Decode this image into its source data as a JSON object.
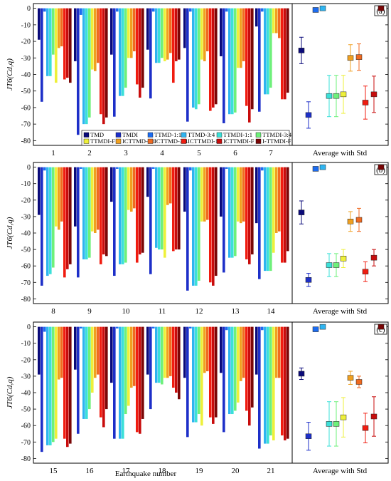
{
  "chart_data": {
    "type": "bar",
    "ylabel": "JT6(Cd,q)",
    "xlabel": "Earthquake number",
    "avg_label": "Average with Std",
    "ylim": [
      -82,
      2
    ],
    "yticks": [
      0,
      -10,
      -20,
      -30,
      -40,
      -50,
      -60,
      -70,
      -80
    ],
    "series_names": [
      "TMD",
      "TMDI",
      "TTMD-1:1",
      "TTMD-3:4",
      "TTMDI-1:1",
      "TTMDI-3:4",
      "TTMDI-F",
      "ICTTMD-1:1",
      "ICTTMD-3:4",
      "ICTTMDI-1:1",
      "ICTTMDI-F",
      "I-TTMDI-F"
    ],
    "colors": [
      "#0a0a7a",
      "#1d2fc8",
      "#1c6cf0",
      "#2fb4f0",
      "#3be0d8",
      "#6ef07a",
      "#eef03a",
      "#f0a020",
      "#f06a20",
      "#f01c10",
      "#c80c0c",
      "#7a0606"
    ],
    "panels": [
      {
        "label": "(a)",
        "categories": [
          "1",
          "2",
          "3",
          "4",
          "5",
          "6",
          "7"
        ],
        "values": [
          [
            -19,
            -56.5,
            -2,
            -41,
            -41,
            -28,
            -45,
            -24,
            -23,
            -43,
            -42,
            -45
          ],
          [
            -32,
            -76.5,
            -4,
            -70,
            -70,
            -66,
            -37,
            -38,
            -33,
            -64,
            -70,
            -66
          ],
          [
            -28,
            -65.5,
            -2,
            -53,
            -53,
            -48,
            -30,
            -30,
            -26,
            -46,
            -54,
            -48
          ],
          [
            -25,
            -54.5,
            -2,
            -33,
            -33,
            -30,
            -32,
            -31,
            -27,
            -45,
            -32,
            -31
          ],
          [
            -24,
            -68.5,
            -2,
            -60,
            -61,
            -58,
            -31,
            -32,
            -26,
            -62,
            -60,
            -58
          ],
          [
            -29,
            -69.5,
            -2,
            -64,
            -64,
            -63,
            -36,
            -36,
            -32,
            -59,
            -69,
            -61
          ],
          [
            -11,
            -62.5,
            -2,
            -52,
            -52,
            -48,
            -15,
            -15,
            -18,
            -55,
            -55,
            -51
          ]
        ],
        "avg": [
          -25.5,
          -64.5,
          -1,
          0,
          -53,
          -53,
          -52,
          -30,
          -29.5,
          -57,
          -52,
          0
        ],
        "avg_std": [
          8,
          8,
          1,
          0.5,
          12.5,
          12.5,
          11.5,
          8,
          8,
          10,
          11,
          0
        ]
      },
      {
        "label": "(b)",
        "categories": [
          "8",
          "9",
          "10",
          "11",
          "12",
          "13",
          "14"
        ],
        "values": [
          [
            -29,
            -72,
            -2,
            -66,
            -65,
            -61,
            -36,
            -38,
            -33,
            -67,
            -62,
            -59
          ],
          [
            -36,
            -67,
            -1,
            -56,
            -56,
            -55,
            -39,
            -40,
            -38,
            -59,
            -53,
            -54
          ],
          [
            -21,
            -66,
            -1,
            -59,
            -59,
            -58,
            -26,
            -27,
            -25,
            -58,
            -53,
            -52
          ],
          [
            -18,
            -65,
            -1,
            -49,
            -50,
            -50,
            -55,
            -23,
            -22,
            -51,
            -50,
            -50
          ],
          [
            -27,
            -75,
            -2,
            -72,
            -72,
            -69,
            -33,
            -33,
            -32,
            -70,
            -72,
            -66
          ],
          [
            -30,
            -64,
            -1,
            -55,
            -55,
            -54,
            -33,
            -34,
            -33,
            -56,
            -59,
            -53
          ],
          [
            -34,
            -68,
            -2,
            -63,
            -63,
            -63,
            -52,
            -40,
            -39,
            -58,
            -58,
            -51
          ]
        ],
        "avg": [
          -27.5,
          -68.5,
          -1,
          0,
          -59.5,
          -59.5,
          -55.5,
          -33,
          -32,
          -63.5,
          -55,
          0
        ],
        "avg_std": [
          7,
          4,
          0.5,
          0.5,
          7,
          7,
          5.5,
          6,
          7,
          6,
          5,
          0
        ]
      },
      {
        "label": "(c)",
        "categories": [
          "15",
          "16",
          "17",
          "18",
          "19",
          "20",
          "21"
        ],
        "values": [
          [
            -29,
            -76,
            -3,
            -72,
            -72,
            -70,
            -68,
            -32,
            -31,
            -68,
            -73,
            -71
          ],
          [
            -26,
            -65,
            -1,
            -56,
            -56,
            -50,
            -40,
            -31,
            -29,
            -55,
            -61,
            -50
          ],
          [
            -34,
            -68,
            -1,
            -68,
            -68,
            -53,
            -48,
            -37,
            -36,
            -64,
            -65,
            -56
          ],
          [
            -29,
            -50,
            -1,
            -34,
            -34,
            -35,
            -31,
            -31,
            -30,
            -37,
            -40,
            -44
          ],
          [
            -31,
            -67,
            -1,
            -58,
            -58,
            -53,
            -60,
            -28,
            -27,
            -55,
            -59,
            -55
          ],
          [
            -28,
            -64,
            -2,
            -53,
            -53,
            -51,
            -46,
            -33,
            -31,
            -51,
            -60,
            -49
          ],
          [
            -29,
            -74,
            -2,
            -71,
            -71,
            -66,
            -69,
            -31,
            -31,
            -66,
            -69,
            -68
          ]
        ],
        "avg": [
          -28.5,
          -66.5,
          -1.5,
          0,
          -59,
          -59,
          -55,
          -31,
          -33.5,
          -61.5,
          -54.5,
          0
        ],
        "avg_std": [
          3.5,
          8.5,
          1,
          0.5,
          13.5,
          13.5,
          12,
          4,
          3.5,
          9,
          12,
          0
        ]
      }
    ]
  }
}
